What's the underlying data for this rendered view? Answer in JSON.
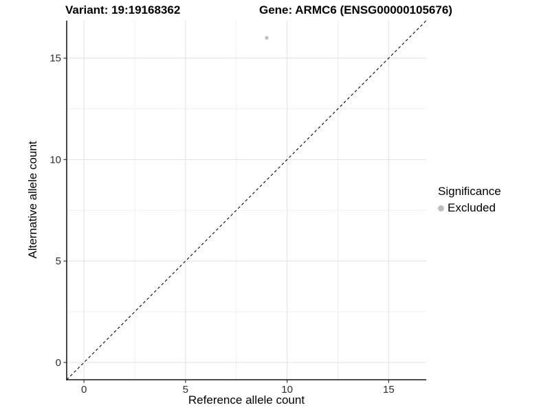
{
  "titles": {
    "variant": "Variant: 19:19168362",
    "gene": "Gene: ARMC6 (ENSG00000105676)"
  },
  "axes": {
    "x_label": "Reference allele count",
    "y_label": "Alternative allele count"
  },
  "legend": {
    "title": "Significance",
    "entries": [
      {
        "label": "Excluded",
        "color": "#bebebe"
      }
    ],
    "position": "right"
  },
  "chart_data": {
    "type": "scatter",
    "title": "Variant: 19:19168362",
    "subtitle": "Gene: ARMC6 (ENSG00000105676)",
    "xlabel": "Reference allele count",
    "ylabel": "Alternative allele count",
    "xlim": [
      -0.85,
      16.85
    ],
    "ylim": [
      -0.85,
      16.85
    ],
    "x_ticks": [
      0,
      5,
      10,
      15
    ],
    "y_ticks": [
      0,
      5,
      10,
      15
    ],
    "x_minor_ticks": [
      2.5,
      7.5,
      12.5
    ],
    "y_minor_ticks": [
      2.5,
      7.5,
      12.5
    ],
    "grid": true,
    "legend_position": "right",
    "series": [
      {
        "name": "Excluded",
        "color": "#bebebe",
        "point_radius": 2.6,
        "points": [
          {
            "x": 9,
            "y": 16
          }
        ]
      }
    ],
    "reference_line": {
      "type": "identity",
      "slope": 1,
      "intercept": 0,
      "style": "dashed",
      "color": "#000000"
    },
    "colors": {
      "panel_background": "#ffffff",
      "gridline_major": "#e3e3e3",
      "gridline_minor": "#eeeeee",
      "axis_line": "#333333",
      "tick_mark": "#333333",
      "tick_label": "#2b2b2b",
      "point": "#bebebe"
    }
  }
}
